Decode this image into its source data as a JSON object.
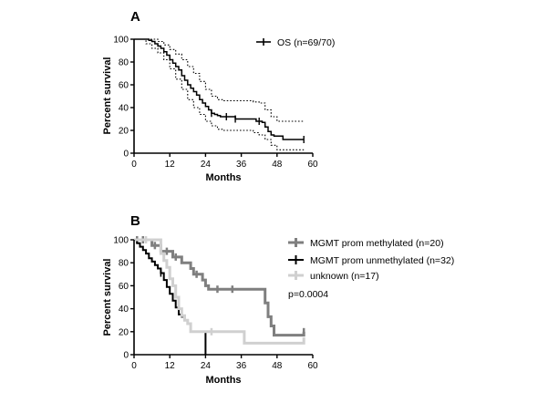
{
  "chart_data": [
    {
      "panel": "A",
      "type": "line",
      "title": "",
      "xlabel": "Months",
      "ylabel": "Percent survival",
      "xlim": [
        0,
        60
      ],
      "ylim": [
        0,
        100
      ],
      "x_ticks": [
        "0",
        "12",
        "24",
        "36",
        "48",
        "60"
      ],
      "y_ticks": [
        "0",
        "20",
        "40",
        "60",
        "80",
        "100"
      ],
      "legend_position": "top-right",
      "series": [
        {
          "name": "OS (n=69/70)",
          "color": "#000000",
          "style": "solid",
          "points": [
            [
              0,
              100
            ],
            [
              4,
              100
            ],
            [
              5,
              99
            ],
            [
              6,
              98
            ],
            [
              7,
              96
            ],
            [
              8,
              94
            ],
            [
              9,
              92
            ],
            [
              10,
              89
            ],
            [
              11,
              86
            ],
            [
              12,
              82
            ],
            [
              13,
              79
            ],
            [
              14,
              76
            ],
            [
              15,
              73
            ],
            [
              16,
              68
            ],
            [
              17,
              64
            ],
            [
              18,
              60
            ],
            [
              19,
              57
            ],
            [
              20,
              54
            ],
            [
              21,
              51
            ],
            [
              22,
              47
            ],
            [
              23,
              44
            ],
            [
              24,
              41
            ],
            [
              25,
              38
            ],
            [
              26,
              35
            ],
            [
              27,
              34
            ],
            [
              28,
              33
            ],
            [
              29,
              32
            ],
            [
              30,
              32
            ],
            [
              33,
              32
            ],
            [
              34,
              30
            ],
            [
              36,
              30
            ],
            [
              40,
              30
            ],
            [
              41,
              28
            ],
            [
              43,
              27
            ],
            [
              44,
              23
            ],
            [
              45,
              19
            ],
            [
              46,
              16
            ],
            [
              47,
              15
            ],
            [
              48,
              15
            ],
            [
              50,
              12
            ],
            [
              57,
              12
            ]
          ],
          "censor_x": [
            26,
            31,
            34,
            42,
            57
          ]
        },
        {
          "name": "",
          "color": "#000000",
          "style": "dotted",
          "points": [
            [
              0,
              100
            ],
            [
              4,
              100
            ],
            [
              6,
              100
            ],
            [
              8,
              98
            ],
            [
              10,
              95
            ],
            [
              12,
              91
            ],
            [
              14,
              87
            ],
            [
              16,
              82
            ],
            [
              18,
              76
            ],
            [
              20,
              70
            ],
            [
              22,
              63
            ],
            [
              24,
              56
            ],
            [
              26,
              50
            ],
            [
              28,
              47
            ],
            [
              30,
              46
            ],
            [
              36,
              46
            ],
            [
              40,
              45
            ],
            [
              42,
              44
            ],
            [
              44,
              38
            ],
            [
              46,
              32
            ],
            [
              48,
              28
            ],
            [
              57,
              28
            ]
          ]
        },
        {
          "name": "",
          "color": "#000000",
          "style": "dotted",
          "points": [
            [
              0,
              100
            ],
            [
              4,
              96
            ],
            [
              6,
              92
            ],
            [
              8,
              88
            ],
            [
              10,
              82
            ],
            [
              12,
              74
            ],
            [
              14,
              65
            ],
            [
              16,
              56
            ],
            [
              18,
              47
            ],
            [
              20,
              40
            ],
            [
              22,
              34
            ],
            [
              24,
              28
            ],
            [
              26,
              24
            ],
            [
              28,
              21
            ],
            [
              30,
              20
            ],
            [
              36,
              20
            ],
            [
              40,
              18
            ],
            [
              42,
              16
            ],
            [
              44,
              12
            ],
            [
              46,
              7
            ],
            [
              48,
              3
            ],
            [
              57,
              3
            ]
          ]
        }
      ]
    },
    {
      "panel": "B",
      "type": "line",
      "title": "",
      "xlabel": "Months",
      "ylabel": "Percent survival",
      "xlim": [
        0,
        60
      ],
      "ylim": [
        0,
        100
      ],
      "x_ticks": [
        "0",
        "12",
        "24",
        "36",
        "48",
        "60"
      ],
      "y_ticks": [
        "0",
        "20",
        "40",
        "60",
        "80",
        "100"
      ],
      "legend_position": "top-right",
      "p_value": "p=0.0004",
      "series": [
        {
          "name": "MGMT prom methylated (n=20)",
          "color": "#7f7f7f",
          "width": 3,
          "points": [
            [
              0,
              100
            ],
            [
              5,
              100
            ],
            [
              6,
              95
            ],
            [
              8,
              95
            ],
            [
              9,
              90
            ],
            [
              12,
              90
            ],
            [
              13,
              85
            ],
            [
              15,
              85
            ],
            [
              16,
              80
            ],
            [
              18,
              80
            ],
            [
              19,
              75
            ],
            [
              20,
              70
            ],
            [
              22,
              70
            ],
            [
              23,
              65
            ],
            [
              24,
              60
            ],
            [
              25,
              57
            ],
            [
              43,
              57
            ],
            [
              44,
              45
            ],
            [
              45,
              33
            ],
            [
              46,
              25
            ],
            [
              47,
              17
            ],
            [
              57,
              17
            ],
            [
              57,
              20
            ]
          ],
          "censor_x": [
            1,
            3,
            7,
            11,
            14,
            21,
            28,
            33,
            57
          ]
        },
        {
          "name": "MGMT prom unmethylated (n=32)",
          "color": "#000000",
          "width": 2,
          "points": [
            [
              0,
              100
            ],
            [
              1,
              97
            ],
            [
              2,
              94
            ],
            [
              3,
              91
            ],
            [
              4,
              88
            ],
            [
              5,
              84
            ],
            [
              6,
              81
            ],
            [
              7,
              78
            ],
            [
              8,
              75
            ],
            [
              9,
              71
            ],
            [
              10,
              65
            ],
            [
              11,
              59
            ],
            [
              12,
              53
            ],
            [
              13,
              47
            ],
            [
              14,
              41
            ],
            [
              15,
              35
            ],
            [
              16,
              33
            ],
            [
              17,
              30
            ],
            [
              18,
              27
            ],
            [
              19,
              20
            ],
            [
              24,
              20
            ],
            [
              24,
              0
            ]
          ],
          "censor_x": [
            9
          ]
        },
        {
          "name": "unknown (n=17)",
          "color": "#d0d0d0",
          "width": 3,
          "points": [
            [
              0,
              100
            ],
            [
              8,
              100
            ],
            [
              9,
              88
            ],
            [
              10,
              82
            ],
            [
              11,
              76
            ],
            [
              12,
              66
            ],
            [
              13,
              60
            ],
            [
              14,
              50
            ],
            [
              15,
              40
            ],
            [
              16,
              34
            ],
            [
              17,
              30
            ],
            [
              18,
              27
            ],
            [
              19,
              20
            ],
            [
              20,
              20
            ],
            [
              26,
              20
            ],
            [
              27,
              20
            ],
            [
              36,
              20
            ],
            [
              37,
              10
            ],
            [
              57,
              10
            ],
            [
              57,
              15
            ]
          ],
          "censor_x": [
            4,
            26
          ]
        }
      ]
    }
  ]
}
